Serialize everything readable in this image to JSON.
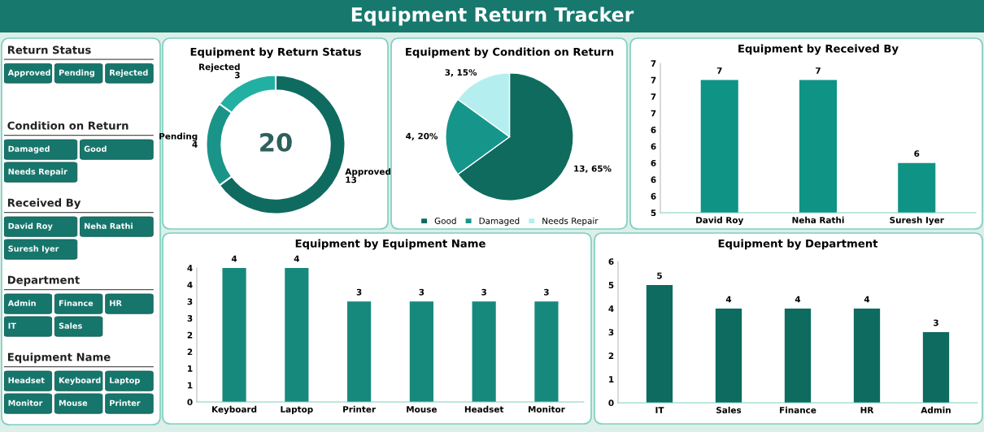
{
  "chart_data": [
    {
      "type": "other",
      "title": "Equipment Return Tracker"
    },
    {
      "type": "other",
      "title": "Return Status",
      "annotations": [
        "Approved",
        "Pending",
        "Rejected"
      ]
    },
    {
      "type": "other",
      "title": "Condition on Return",
      "annotations": [
        "Damaged",
        "Good",
        "Needs Repair"
      ]
    },
    {
      "type": "other",
      "title": "Received By",
      "annotations": [
        "David Roy",
        "Neha Rathi",
        "Suresh Iyer"
      ]
    },
    {
      "type": "other",
      "title": "Department",
      "annotations": [
        "Admin",
        "Finance",
        "HR",
        "IT",
        "Sales"
      ]
    },
    {
      "type": "other",
      "title": "Equipment Name",
      "annotations": [
        "Headset",
        "Keyboard",
        "Laptop",
        "Monitor",
        "Mouse",
        "Printer"
      ]
    },
    {
      "type": "donut",
      "title": "Equipment by Return Status",
      "categories": [
        "Approved",
        "Pending",
        "Rejected"
      ],
      "values": [
        13,
        4,
        3
      ],
      "colors": [
        "#0f6b5f",
        "#1a9488",
        "#22b0a3"
      ],
      "data_labels": true,
      "annotations": [
        "20"
      ],
      "legend": false
    },
    {
      "type": "pie",
      "title": "Equipment by Condition on Return",
      "categories": [
        "Good",
        "Damaged",
        "Needs Repair"
      ],
      "values": [
        13,
        4,
        3
      ],
      "colors": [
        "#0e6b5e",
        "#16968a",
        "#b5eeee"
      ],
      "value_labels": [
        "13, 65%",
        "4, 20%",
        "3, 15%"
      ],
      "legend": "bottom"
    },
    {
      "type": "bar",
      "title": "Equipment by Received By",
      "categories": [
        "David Roy",
        "Neha Rathi",
        "Suresh Iyer"
      ],
      "values": [
        7,
        7,
        6
      ],
      "color": "#0f9385",
      "data_labels": true,
      "grid": false,
      "ylim": [
        5.4,
        7.2
      ],
      "yticks": [
        {
          "value": 5.4,
          "label": "5"
        },
        {
          "value": 5.6,
          "label": "6"
        },
        {
          "value": 5.8,
          "label": "6"
        },
        {
          "value": 6.0,
          "label": "6"
        },
        {
          "value": 6.2,
          "label": "6"
        },
        {
          "value": 6.4,
          "label": "6"
        },
        {
          "value": 6.6,
          "label": "7"
        },
        {
          "value": 6.8,
          "label": "7"
        },
        {
          "value": 7.0,
          "label": "7"
        },
        {
          "value": 7.2,
          "label": "7"
        }
      ]
    },
    {
      "type": "bar",
      "title": "Equipment by Equipment Name",
      "categories": [
        "Keyboard",
        "Laptop",
        "Printer",
        "Mouse",
        "Headset",
        "Monitor"
      ],
      "values": [
        4,
        4,
        3,
        3,
        3,
        3
      ],
      "color": "#17887c",
      "data_labels": true,
      "grid": false,
      "ylim": [
        0,
        4
      ],
      "yticks": [
        0,
        {
          "value": 0.5,
          "label": "1"
        },
        1,
        {
          "value": 1.5,
          "label": "2"
        },
        2,
        {
          "value": 2.5,
          "label": "3"
        },
        3,
        {
          "value": 3.5,
          "label": "4"
        },
        4
      ]
    },
    {
      "type": "bar",
      "title": "Equipment by Department",
      "categories": [
        "IT",
        "Sales",
        "Finance",
        "HR",
        "Admin"
      ],
      "values": [
        5,
        4,
        4,
        4,
        3
      ],
      "color": "#0d6b60",
      "data_labels": true,
      "grid": false,
      "ylim": [
        0,
        6
      ],
      "yticks": [
        0,
        1,
        2,
        3,
        4,
        5,
        6
      ]
    }
  ]
}
